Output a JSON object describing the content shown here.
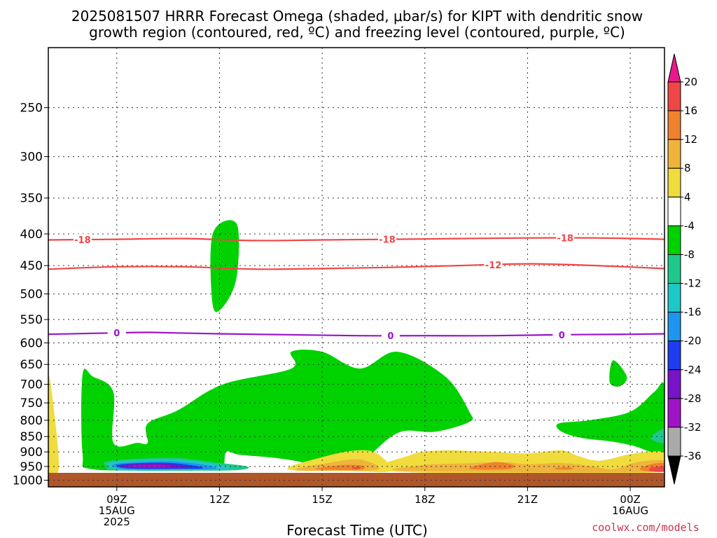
{
  "chart_data": {
    "type": "time-height",
    "title_line1": "2025081507 HRRR Forecast Omega (shaded, μbar/s) for KIPT with dendritic snow",
    "title_line2": "growth region (contoured, red, ºC) and freezing level (contoured, purple, ºC)",
    "xlabel": "Forecast Time (UTC)",
    "credit": "coolwx.com/models",
    "x_range_hours": [
      7,
      25
    ],
    "y_range_hPa": [
      1025,
      200
    ],
    "y_scale": "log-pressure",
    "grid": true,
    "y_ticks": [
      250,
      300,
      350,
      400,
      450,
      500,
      550,
      600,
      650,
      700,
      750,
      800,
      850,
      900,
      950,
      1000
    ],
    "x_ticks": [
      {
        "hour": 9,
        "lines": [
          "09Z",
          "15AUG",
          "2025"
        ]
      },
      {
        "hour": 12,
        "lines": [
          "12Z"
        ]
      },
      {
        "hour": 15,
        "lines": [
          "15Z"
        ]
      },
      {
        "hour": 18,
        "lines": [
          "18Z"
        ]
      },
      {
        "hour": 21,
        "lines": [
          "21Z"
        ]
      },
      {
        "hour": 24,
        "lines": [
          "00Z",
          "16AUG"
        ]
      }
    ],
    "colorbar": {
      "units": "μbar/s",
      "labels": [
        "20",
        "16",
        "12",
        "8",
        "4",
        "-4",
        "-8",
        "-12",
        "-16",
        "-20",
        "-24",
        "-28",
        "-32",
        "-36"
      ],
      "colors_top_to_bottom": [
        "#e8198c",
        "#f04646",
        "#f0822d",
        "#f0b43c",
        "#f0dc3c",
        "#ffffff",
        "#00d200",
        "#1ec88c",
        "#1ec8c8",
        "#1e96f0",
        "#1e3cf0",
        "#7814c8",
        "#a014c8",
        "#aaaaaa",
        "#000000"
      ]
    },
    "contours": [
      {
        "kind": "dendritic",
        "label": "-18",
        "color": "#f04646",
        "points": [
          [
            7,
            409
          ],
          [
            9,
            408
          ],
          [
            11,
            407
          ],
          [
            13,
            410
          ],
          [
            15,
            409
          ],
          [
            17,
            408
          ],
          [
            19,
            407
          ],
          [
            21,
            406
          ],
          [
            23,
            406
          ],
          [
            25,
            408
          ]
        ],
        "label_hours": [
          8.0,
          16.9,
          22.1
        ]
      },
      {
        "kind": "dendritic",
        "label": "-12",
        "color": "#f04646",
        "points": [
          [
            7,
            456
          ],
          [
            9,
            452
          ],
          [
            11,
            452
          ],
          [
            13,
            456
          ],
          [
            15,
            455
          ],
          [
            17,
            453
          ],
          [
            19,
            450
          ],
          [
            21,
            447
          ],
          [
            23,
            450
          ],
          [
            25,
            455
          ]
        ],
        "label_hours": [
          20.0
        ]
      },
      {
        "kind": "freezing",
        "label": "0",
        "color": "#9a14c8",
        "points": [
          [
            7,
            581
          ],
          [
            9,
            578
          ],
          [
            10,
            577
          ],
          [
            12,
            580
          ],
          [
            14,
            582
          ],
          [
            16,
            584
          ],
          [
            18,
            584
          ],
          [
            20,
            584
          ],
          [
            22,
            582
          ],
          [
            24,
            581
          ],
          [
            25,
            580
          ]
        ],
        "label_hours": [
          9.0,
          17.0,
          22.0
        ]
      }
    ],
    "shaded_regions": [
      {
        "value": "-4 to -8",
        "color": "#00d200",
        "points": [
          [
            8,
            675
          ],
          [
            8.3,
            680
          ],
          [
            8.9,
            720
          ],
          [
            8.9,
            870
          ],
          [
            9.6,
            870
          ],
          [
            9.9,
            870
          ],
          [
            9.9,
            810
          ],
          [
            10.8,
            770
          ],
          [
            12.1,
            700
          ],
          [
            14.1,
            660
          ],
          [
            14.1,
            620
          ],
          [
            15,
            620
          ],
          [
            16.1,
            660
          ],
          [
            17.2,
            620
          ],
          [
            18.6,
            680
          ],
          [
            19.3,
            775
          ],
          [
            19.3,
            805
          ],
          [
            18.3,
            835
          ],
          [
            17.3,
            835
          ],
          [
            16.5,
            900
          ],
          [
            16.1,
            960
          ],
          [
            15.1,
            960
          ],
          [
            14.4,
            935
          ],
          [
            13.6,
            920
          ],
          [
            12.6,
            910
          ],
          [
            12.2,
            900
          ],
          [
            12.1,
            955
          ],
          [
            11.7,
            955
          ],
          [
            10.7,
            960
          ],
          [
            8.3,
            960
          ],
          [
            8.0,
            905
          ]
        ]
      },
      {
        "value": "-4 to -8",
        "color": "#00d200",
        "points": [
          [
            11.8,
            400
          ],
          [
            12.5,
            385
          ],
          [
            12.5,
            470
          ],
          [
            12.1,
            525
          ],
          [
            11.8,
            520
          ]
        ]
      },
      {
        "value": "-4 to -8",
        "color": "#00d200",
        "points": [
          [
            23.5,
            640
          ],
          [
            23.9,
            680
          ],
          [
            23.7,
            705
          ],
          [
            23.4,
            695
          ]
        ]
      },
      {
        "value": "-4 to -8",
        "color": "#00d200",
        "points": [
          [
            21.9,
            810
          ],
          [
            22.8,
            800
          ],
          [
            24.0,
            775
          ],
          [
            24.7,
            720
          ],
          [
            25,
            705
          ],
          [
            25,
            905
          ],
          [
            24.6,
            900
          ],
          [
            24.1,
            880
          ],
          [
            23.4,
            865
          ],
          [
            22.6,
            855
          ],
          [
            22.0,
            835
          ]
        ]
      },
      {
        "value": "-8 to -12",
        "color": "#1ec88c",
        "points": [
          [
            8.8,
            930
          ],
          [
            10.6,
            920
          ],
          [
            11.8,
            935
          ],
          [
            12.8,
            950
          ],
          [
            12.6,
            962
          ],
          [
            11.5,
            965
          ],
          [
            9.0,
            964
          ],
          [
            8.7,
            950
          ]
        ]
      },
      {
        "value": "-8 to -12",
        "color": "#1ec88c",
        "points": [
          [
            24.6,
            855
          ],
          [
            25,
            825
          ],
          [
            25,
            870
          ]
        ]
      },
      {
        "value": "-12 to -16",
        "color": "#1ec8c8",
        "points": [
          [
            8.9,
            935
          ],
          [
            10.6,
            927
          ],
          [
            11.8,
            940
          ],
          [
            12.3,
            958
          ],
          [
            11.3,
            962
          ],
          [
            9.1,
            961
          ]
        ]
      },
      {
        "value": "-16 to -20",
        "color": "#1e96f0",
        "points": [
          [
            9.0,
            940
          ],
          [
            10.5,
            932
          ],
          [
            11.6,
            945
          ],
          [
            11.9,
            958
          ],
          [
            11.2,
            960
          ],
          [
            9.2,
            959
          ]
        ]
      },
      {
        "value": "-20 to -24",
        "color": "#1e3cf0",
        "points": [
          [
            9.1,
            943
          ],
          [
            10.4,
            937
          ],
          [
            11.3,
            948
          ],
          [
            11.5,
            957
          ],
          [
            10.9,
            958
          ],
          [
            9.3,
            957
          ]
        ]
      },
      {
        "value": "-24 to -28",
        "color": "#7814c8",
        "points": [
          [
            9.2,
            945
          ],
          [
            10.3,
            940
          ],
          [
            11.0,
            950
          ],
          [
            11.1,
            956
          ],
          [
            10.5,
            956
          ],
          [
            9.4,
            955
          ]
        ]
      },
      {
        "value": "-28 to -32",
        "color": "#a014c8",
        "points": [
          [
            9.4,
            947
          ],
          [
            10.2,
            944
          ],
          [
            10.6,
            951
          ],
          [
            10.3,
            954
          ],
          [
            9.5,
            953
          ]
        ]
      },
      {
        "value": "4 to 8",
        "color": "#f0dc3c",
        "points": [
          [
            7,
            680
          ],
          [
            7.2,
            800
          ],
          [
            7.3,
            960
          ],
          [
            7.0,
            960
          ]
        ]
      },
      {
        "value": "4 to 8",
        "color": "#f0dc3c",
        "points": [
          [
            14.0,
            960
          ],
          [
            15.1,
            915
          ],
          [
            16.0,
            895
          ],
          [
            16.6,
            905
          ],
          [
            17.0,
            965
          ],
          [
            16.0,
            967
          ]
        ]
      },
      {
        "value": "4 to 8",
        "color": "#f0dc3c",
        "points": [
          [
            17.1,
            968
          ],
          [
            17.6,
            910
          ],
          [
            18.5,
            895
          ],
          [
            20.0,
            900
          ],
          [
            21.0,
            905
          ],
          [
            22.0,
            895
          ],
          [
            22.5,
            915
          ],
          [
            23.1,
            930
          ],
          [
            23.9,
            910
          ],
          [
            24.5,
            900
          ],
          [
            25,
            905
          ],
          [
            25,
            970
          ]
        ]
      },
      {
        "value": "8 to 12",
        "color": "#f0b43c",
        "points": [
          [
            14.2,
            962
          ],
          [
            15.3,
            935
          ],
          [
            16.0,
            925
          ],
          [
            16.5,
            940
          ],
          [
            16.6,
            962
          ],
          [
            15.5,
            965
          ]
        ]
      },
      {
        "value": "8 to 12",
        "color": "#f0b43c",
        "points": [
          [
            17.5,
            966
          ],
          [
            18.0,
            945
          ],
          [
            19.0,
            940
          ],
          [
            20.3,
            935
          ],
          [
            21.0,
            942
          ],
          [
            22.0,
            938
          ],
          [
            22.8,
            948
          ],
          [
            23.5,
            960
          ],
          [
            24.2,
            935
          ],
          [
            25,
            930
          ],
          [
            25,
            968
          ]
        ]
      },
      {
        "value": "12 to 16",
        "color": "#f0822d",
        "points": [
          [
            14.8,
            958
          ],
          [
            15.6,
            945
          ],
          [
            16.2,
            948
          ],
          [
            16.1,
            962
          ],
          [
            15.2,
            962
          ]
        ]
      },
      {
        "value": "12 to 16",
        "color": "#f0822d",
        "points": [
          [
            19.3,
            958
          ],
          [
            20.0,
            935
          ],
          [
            20.6,
            945
          ],
          [
            20.4,
            960
          ]
        ]
      },
      {
        "value": "12 to 16",
        "color": "#f0822d",
        "points": [
          [
            21.8,
            955
          ],
          [
            22.2,
            952
          ],
          [
            22.3,
            960
          ],
          [
            21.9,
            961
          ]
        ]
      },
      {
        "value": "12 to 16",
        "color": "#f0822d",
        "points": [
          [
            24.3,
            955
          ],
          [
            24.7,
            940
          ],
          [
            25,
            940
          ],
          [
            25,
            968
          ],
          [
            24.4,
            966
          ]
        ]
      },
      {
        "value": "16 to 20",
        "color": "#f04646",
        "points": [
          [
            24.6,
            955
          ],
          [
            25,
            950
          ],
          [
            25,
            968
          ],
          [
            24.6,
            966
          ]
        ]
      },
      {
        "value": "16 to 20",
        "color": "#f04646",
        "points": [
          [
            15.9,
            954
          ],
          [
            16.1,
            952
          ],
          [
            16.1,
            957
          ],
          [
            15.9,
            958
          ]
        ]
      }
    ]
  }
}
